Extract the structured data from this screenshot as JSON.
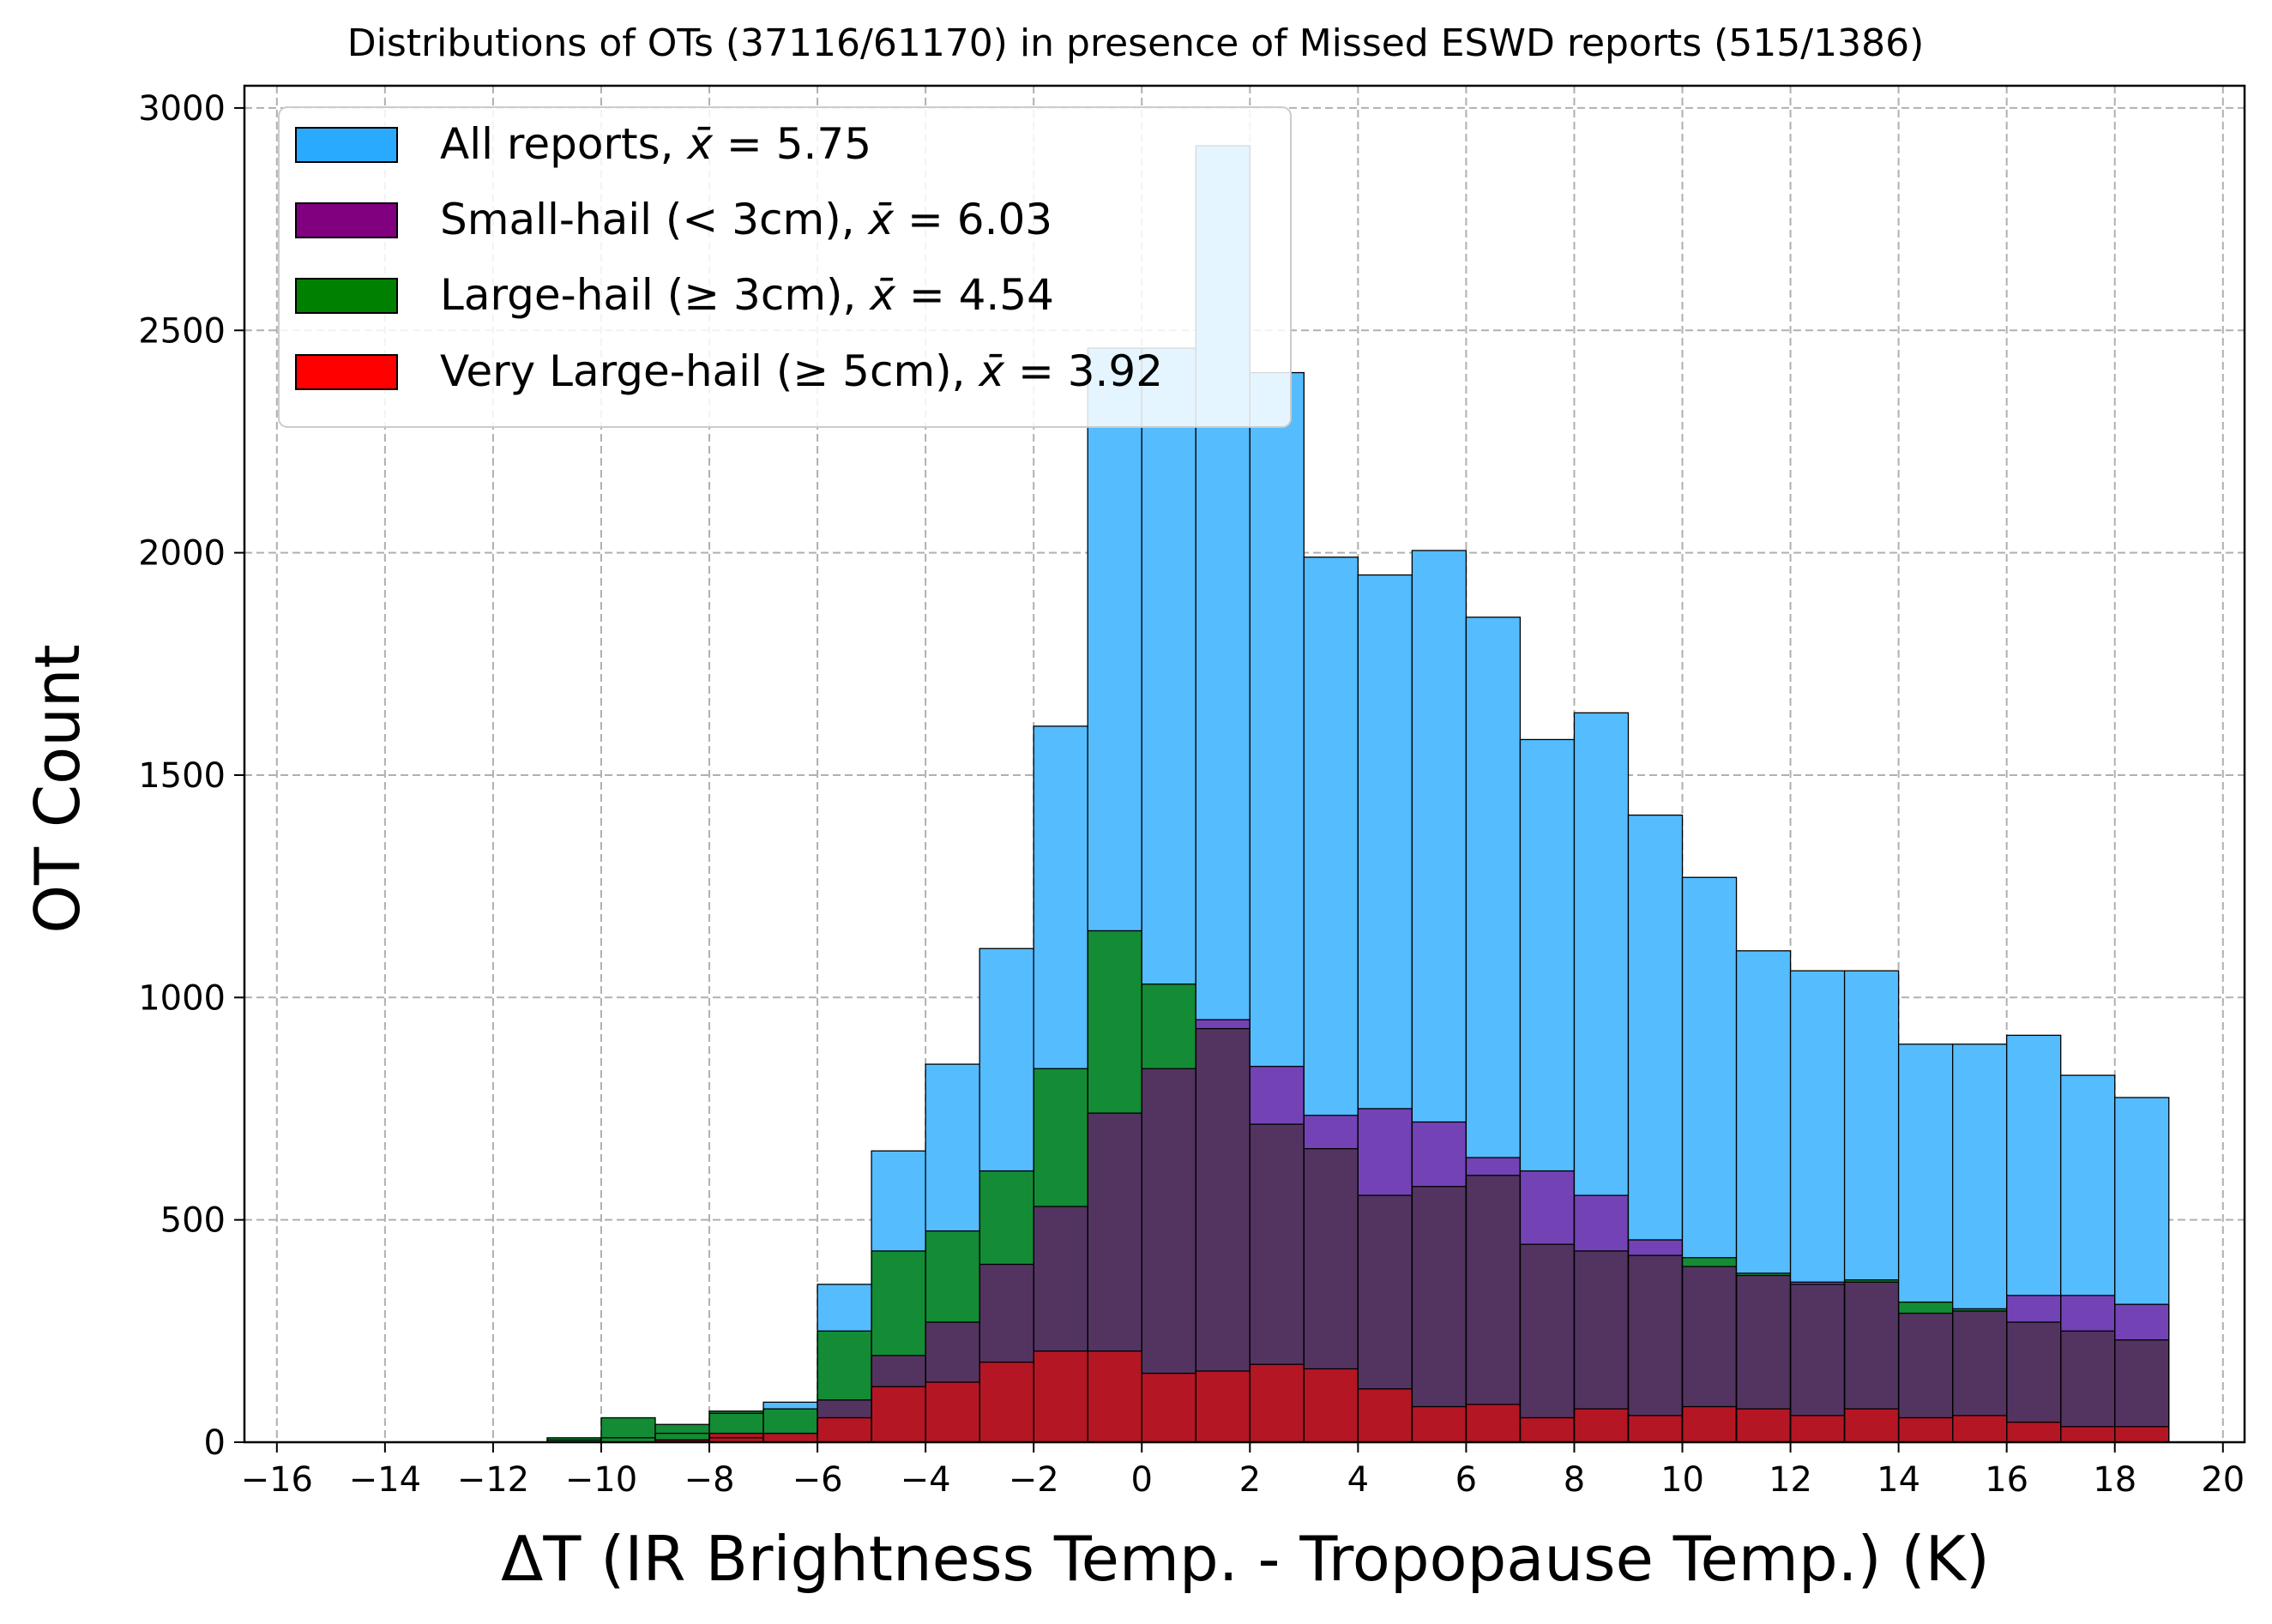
{
  "chart_data": {
    "type": "bar",
    "title": "Distributions of OTs (37116/61170) in presence of Missed ESWD reports (515/1386)",
    "xlabel": "ΔT (IR Brightness Temp. - Tropopause Temp.) (K)",
    "ylabel": "OT Count",
    "xlim": [
      -16.6,
      20.4
    ],
    "ylim": [
      0,
      3050
    ],
    "xticks": [
      -16,
      -14,
      -12,
      -10,
      -8,
      -6,
      -4,
      -2,
      0,
      2,
      4,
      6,
      8,
      10,
      12,
      14,
      16,
      18,
      20
    ],
    "xtick_labels": [
      "−16",
      "−14",
      "−12",
      "−10",
      "−8",
      "−6",
      "−4",
      "−2",
      "0",
      "2",
      "4",
      "6",
      "8",
      "10",
      "12",
      "14",
      "16",
      "18",
      "20"
    ],
    "yticks": [
      0,
      500,
      1000,
      1500,
      2000,
      2500,
      3000
    ],
    "ytick_labels": [
      "0",
      "500",
      "1000",
      "1500",
      "2000",
      "2500",
      "3000"
    ],
    "grid": true,
    "legend_position": "top-left",
    "bin_edges": [
      -11,
      -10,
      -9,
      -8,
      -7,
      -6,
      -5,
      -4,
      -3,
      -2,
      -1,
      0,
      1,
      2,
      3,
      4,
      5,
      6,
      7,
      8,
      9,
      10,
      11,
      12,
      13,
      14,
      15,
      16,
      17,
      18,
      19
    ],
    "series": [
      {
        "name": "All reports, ",
        "mean_label": "5.75",
        "color": "#29AAFF",
        "fill": "#55BCFE",
        "values": [
          5,
          10,
          20,
          65,
          90,
          355,
          655,
          850,
          1110,
          1610,
          2460,
          2460,
          2915,
          2405,
          1990,
          1950,
          2005,
          1855,
          1580,
          1640,
          1410,
          1270,
          1105,
          1060,
          1060,
          895,
          895,
          915,
          825,
          775
        ]
      },
      {
        "name": "Small-hail (",
        "name_rel": "< 3cm), ",
        "mean_label": "6.03",
        "color": "#800080",
        "fill": "#7343B5",
        "values": [
          0,
          0,
          5,
          10,
          20,
          95,
          195,
          270,
          400,
          530,
          740,
          840,
          950,
          845,
          735,
          750,
          720,
          640,
          610,
          555,
          455,
          395,
          375,
          360,
          360,
          290,
          295,
          330,
          330,
          310
        ]
      },
      {
        "name": "Large-hail (",
        "name_rel": "≥ 3cm), ",
        "mean_label": "4.54",
        "color": "#008000",
        "fill": "#138C35",
        "values": [
          10,
          55,
          40,
          70,
          75,
          250,
          430,
          475,
          610,
          840,
          1150,
          1030,
          930,
          715,
          660,
          555,
          575,
          600,
          445,
          430,
          420,
          415,
          380,
          355,
          365,
          315,
          300,
          270,
          250,
          230
        ]
      },
      {
        "name": "Very Large-hail (",
        "name_rel": "≥ 5cm), ",
        "mean_label": "3.92",
        "color": "#FF0000",
        "fill": "#B51624",
        "values": [
          0,
          0,
          5,
          20,
          20,
          55,
          125,
          135,
          180,
          205,
          205,
          155,
          160,
          175,
          165,
          120,
          80,
          85,
          55,
          75,
          60,
          80,
          75,
          60,
          75,
          55,
          60,
          45,
          35,
          35
        ]
      }
    ],
    "overlap_colors": {
      "small_large": "#533461"
    }
  }
}
